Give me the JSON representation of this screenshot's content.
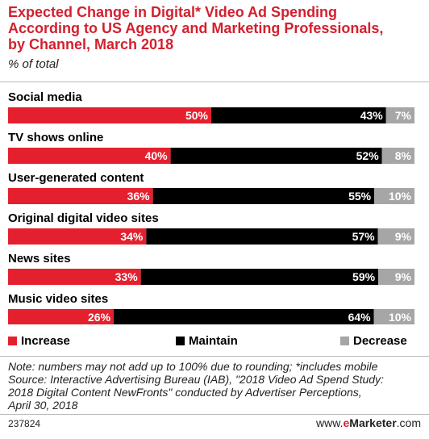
{
  "title_lines": [
    "Expected Change in Digital* Video Ad Spending",
    "According to US Agency and Marketing Professionals,",
    "by Channel, March 2018"
  ],
  "subtitle": "% of total",
  "chart_data": {
    "type": "bar",
    "orientation": "horizontal",
    "stacked": true,
    "categories": [
      "Social media",
      "TV shows online",
      "User-generated content",
      "Original digital video sites",
      "News sites",
      "Music video sites"
    ],
    "series": [
      {
        "name": "Increase",
        "values": [
          50,
          40,
          36,
          34,
          33,
          26
        ],
        "labels": [
          "50%",
          "40%",
          "36%",
          "34%",
          "33%",
          "26%"
        ],
        "color": "#e5202e"
      },
      {
        "name": "Maintain",
        "values": [
          43,
          52,
          55,
          57,
          59,
          64
        ],
        "labels": [
          "43%",
          "52%",
          "55%",
          "57%",
          "59%",
          "64%"
        ],
        "color": "#000000"
      },
      {
        "name": "Decrease",
        "values": [
          7,
          8,
          10,
          9,
          9,
          10
        ],
        "labels": [
          "7%",
          "8%",
          "10%",
          "9%",
          "9%",
          "10%"
        ],
        "color": "#a6a6a6"
      }
    ],
    "legend_position": "bottom",
    "grid": false
  },
  "legend": {
    "increase": "Increase",
    "maintain": "Maintain",
    "decrease": "Decrease"
  },
  "notes": [
    "Note: numbers may not add up to 100% due to rounding; *includes mobile",
    "Source: Interactive Advertising Bureau (IAB), \"2018 Video Ad Spend Study:",
    "2018 Digital Content NewFronts\" conducted by Advertiser Perceptions,",
    "April 30, 2018"
  ],
  "footer": {
    "chart_id": "237824",
    "brand_prefix": "www.",
    "brand_e": "e",
    "brand_name": "Marketer",
    "brand_suffix": ".com"
  }
}
